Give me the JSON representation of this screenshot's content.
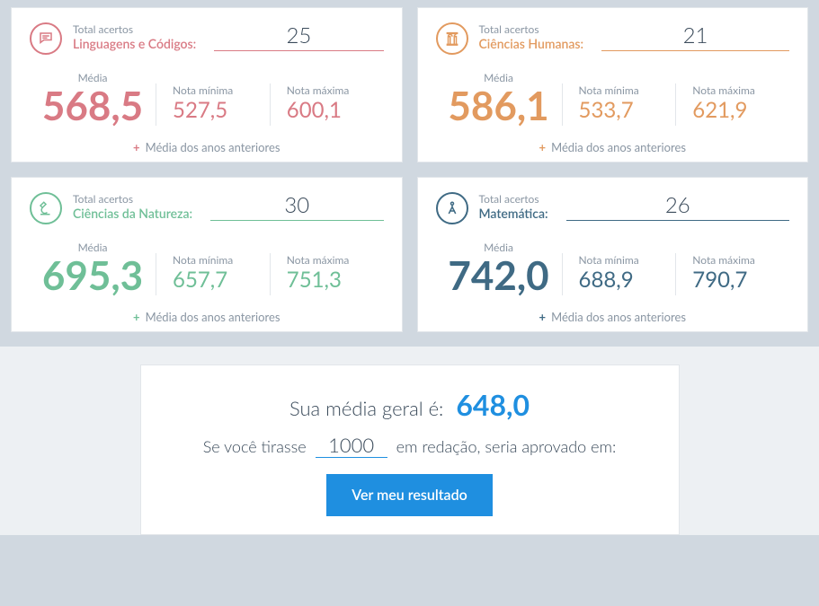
{
  "labels": {
    "total_acertos": "Total acertos",
    "media": "Média",
    "nota_minima": "Nota mínima",
    "nota_maxima": "Nota máxima",
    "media_anteriores": "Média dos anos anteriores"
  },
  "cards": [
    {
      "id": "linguagens",
      "subject": "Linguagens e Códigos:",
      "acertos": "25",
      "media": "568,5",
      "min": "527,5",
      "max": "600,1",
      "color": "#d97a84",
      "icon": "chat-icon"
    },
    {
      "id": "humanas",
      "subject": "Ciências Humanas:",
      "acertos": "21",
      "media": "586,1",
      "min": "533,7",
      "max": "621,9",
      "color": "#e29a5f",
      "icon": "column-icon"
    },
    {
      "id": "natureza",
      "subject": "Ciências da Natureza:",
      "acertos": "30",
      "media": "695,3",
      "min": "657,7",
      "max": "751,3",
      "color": "#6fbf97",
      "icon": "microscope-icon"
    },
    {
      "id": "matematica",
      "subject": "Matemática:",
      "acertos": "26",
      "media": "742,0",
      "min": "688,9",
      "max": "790,7",
      "color": "#3f6a84",
      "icon": "compass-icon"
    }
  ],
  "summary": {
    "line1_prefix": "Sua média geral é:",
    "geral": "648,0",
    "line2_prefix": "Se você tirasse",
    "redacao_value": "1000",
    "line2_suffix": "em redação, seria aprovado em:",
    "button": "Ver meu resultado",
    "accent_color": "#1f8fe0"
  },
  "layout": {
    "page_bg": "#d0d8e0",
    "summary_bg": "#edf0f3",
    "card_bg": "#ffffff",
    "divider": "#e2e6ea",
    "muted_text": "#8a96a3",
    "body_text": "#3a4a5a"
  }
}
